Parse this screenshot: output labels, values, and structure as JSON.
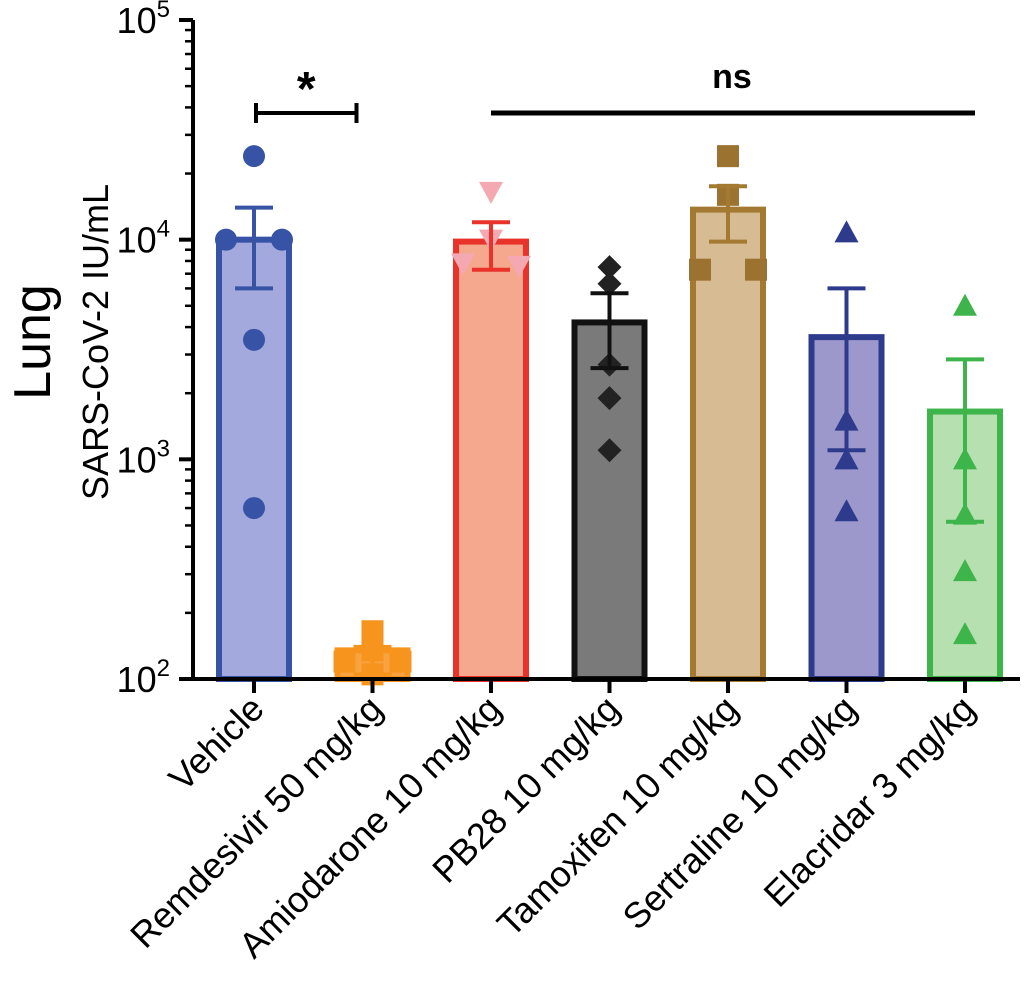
{
  "chart_data": {
    "type": "bar",
    "title": "",
    "ylabel_main": "Lung",
    "ylabel_sub": "SARS-CoV-2 IU/mL",
    "yscale": "log",
    "ylim": [
      100,
      100000
    ],
    "yticks": [
      {
        "value": 100,
        "base": "10",
        "exp": "2"
      },
      {
        "value": 1000,
        "base": "10",
        "exp": "3"
      },
      {
        "value": 10000,
        "base": "10",
        "exp": "4"
      },
      {
        "value": 100000,
        "base": "10",
        "exp": "5"
      }
    ],
    "categories": [
      "Vehicle",
      "Remdesivir 50 mg/kg",
      "Amiodarone 10 mg/kg",
      "PB28 10 mg/kg",
      "Tamoxifen 10 mg/kg",
      "Sertraline 10 mg/kg",
      "Elacridar 3 mg/kg"
    ],
    "bars": [
      {
        "mean": 10000,
        "sem_low": 6000,
        "sem_high": 14000,
        "fill": "#a3a8dd",
        "stroke": "#3653a6",
        "marker": "circle",
        "marker_color": "#3653a6",
        "points": [
          24000,
          10000,
          10000,
          3500,
          600
        ]
      },
      {
        "mean": 135,
        "sem_low": 105,
        "sem_high": 140,
        "fill": "#f7a340",
        "stroke": "#f7941d",
        "marker": "square",
        "marker_color": "#f7941d",
        "points": [
          165,
          135,
          120,
          120,
          105
        ]
      },
      {
        "mean": 9800,
        "sem_low": 7300,
        "sem_high": 12000,
        "fill": "#f6a88e",
        "stroke": "#e8322a",
        "marker": "triangle-down",
        "marker_color": "#f4a8b1",
        "points": [
          16500,
          10000,
          7800,
          7600
        ]
      },
      {
        "mean": 4200,
        "sem_low": 2600,
        "sem_high": 5700,
        "fill": "#7a7a7a",
        "stroke": "#111111",
        "marker": "diamond",
        "marker_color": "#222222",
        "points": [
          7500,
          6300,
          2700,
          1900,
          1100
        ]
      },
      {
        "mean": 13700,
        "sem_low": 9800,
        "sem_high": 17500,
        "fill": "#d7bb93",
        "stroke": "#a47a33",
        "marker": "square",
        "marker_color": "#9c7230",
        "points": [
          24000,
          16000,
          7300,
          7300
        ]
      },
      {
        "mean": 3600,
        "sem_low": 1100,
        "sem_high": 6000,
        "fill": "#9c98cb",
        "stroke": "#2e3a8c",
        "marker": "triangle",
        "marker_color": "#2e3a8c",
        "points": [
          10800,
          1500,
          1000,
          580
        ]
      },
      {
        "mean": 1650,
        "sem_low": 520,
        "sem_high": 2850,
        "fill": "#b7e0b0",
        "stroke": "#3db54a",
        "marker": "triangle",
        "marker_color": "#3db54a",
        "points": [
          5000,
          1000,
          560,
          310,
          160
        ]
      }
    ],
    "annotations": [
      {
        "text": "*",
        "from_category": 0,
        "to_category": 1
      },
      {
        "text": "ns",
        "from_category": 2,
        "to_category": 6
      }
    ]
  }
}
